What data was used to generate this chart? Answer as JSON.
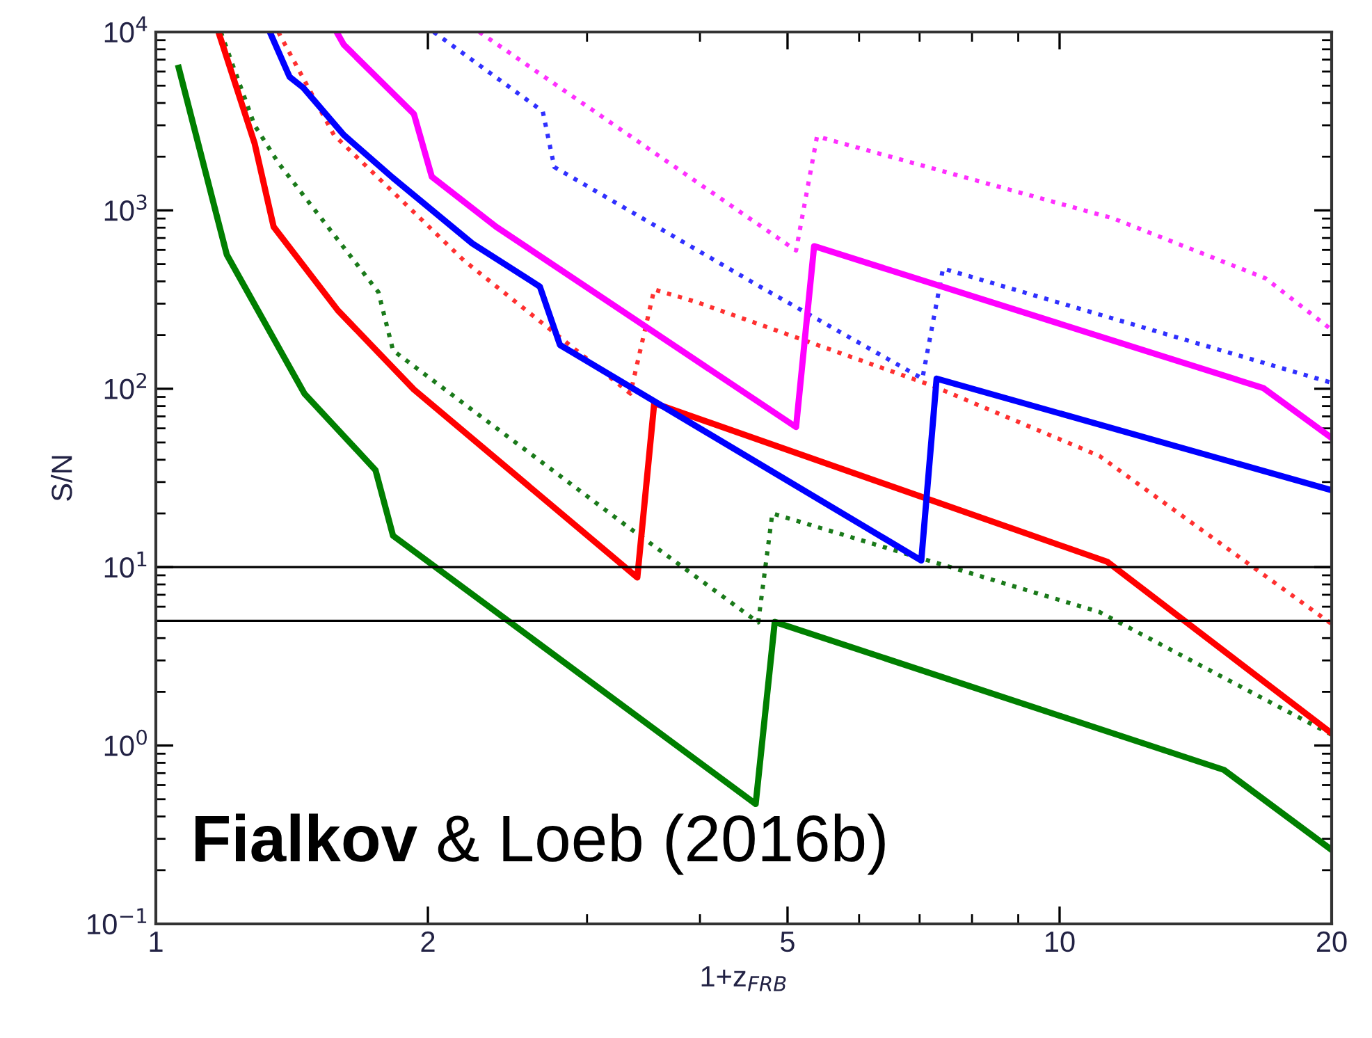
{
  "chart_data": {
    "type": "line",
    "xlabel": "1+z$_{FRB}$",
    "ylabel": "S/N",
    "log": "xy",
    "grid": false,
    "marker": "none",
    "xlim": [
      1,
      20
    ],
    "xticks": [
      1,
      2,
      5,
      10,
      20
    ],
    "ylim": [
      0.1,
      10000
    ],
    "yticks": [
      {
        "value": 0.1,
        "label": "10$^{−1}$"
      },
      {
        "value": 1,
        "label": "10$^{0}$"
      },
      {
        "value": 10,
        "label": "10$^{1}$"
      },
      {
        "value": 100,
        "label": "10$^{2}$"
      },
      {
        "value": 1000,
        "label": "10$^{3}$"
      },
      {
        "value": 10000,
        "label": "10$^{4}$"
      }
    ],
    "ref_lines": [
      {
        "axis": "y",
        "value": 10,
        "color": "#000000"
      },
      {
        "axis": "y",
        "value": 5,
        "color": "#000000"
      }
    ],
    "series": [
      {
        "color": "#1a7a1a",
        "line_style": "dotted",
        "x": [
          1.18,
          1.286,
          1.366,
          1.763,
          1.83,
          3.32,
          4.64,
          4.81,
          11.07,
          20
        ],
        "values": [
          10000,
          3000,
          1850,
          348,
          164,
          17,
          4.9,
          20,
          5.6,
          1.15
        ]
      },
      {
        "color": "#ff3030",
        "line_style": "dotted",
        "x": [
          1.366,
          1.574,
          2.19,
          3.35,
          3.56,
          3.96,
          7.23,
          11.07,
          20
        ],
        "values": [
          10000,
          2650,
          526,
          94,
          360,
          307,
          104,
          42,
          4.8
        ]
      },
      {
        "color": "#3030ff",
        "line_style": "dotted",
        "x": [
          2.03,
          2.68,
          2.76,
          4.69,
          7.05,
          7.43,
          20
        ],
        "values": [
          10000,
          3590,
          1750,
          367,
          114,
          472,
          108
        ]
      },
      {
        "color": "#ff30ff",
        "line_style": "dotted",
        "x": [
          2.28,
          5.11,
          5.39,
          11.47,
          16.9,
          20
        ],
        "values": [
          10000,
          596,
          2600,
          901,
          416,
          214
        ]
      },
      {
        "color": "#007f00",
        "line_style": "solid",
        "x": [
          1.06,
          1.198,
          1.46,
          1.75,
          1.83,
          4.61,
          4.84,
          15.2,
          20
        ],
        "values": [
          6300,
          565,
          94,
          35,
          15,
          0.47,
          4.93,
          0.73,
          0.26
        ]
      },
      {
        "color": "#ff0000",
        "line_style": "solid",
        "x": [
          1.173,
          1.286,
          1.35,
          1.59,
          1.93,
          3.41,
          3.56,
          11.3,
          20
        ],
        "values": [
          10000,
          2380,
          809,
          275,
          99,
          8.75,
          83,
          10.7,
          1.17
        ]
      },
      {
        "color": "#0000ff",
        "line_style": "solid",
        "x": [
          1.337,
          1.406,
          1.456,
          1.614,
          1.83,
          2.24,
          2.66,
          2.8,
          7.03,
          7.31,
          20
        ],
        "values": [
          10000,
          5600,
          4870,
          2650,
          1520,
          652,
          374,
          176,
          10.9,
          114,
          27
        ]
      },
      {
        "color": "#ff00ff",
        "line_style": "solid",
        "x": [
          1.585,
          1.614,
          1.93,
          2.02,
          2.38,
          5.11,
          5.35,
          16.8,
          20
        ],
        "values": [
          10000,
          8500,
          3470,
          1545,
          809,
          61,
          630,
          101,
          53
        ]
      }
    ],
    "annotations": [
      "Fialkov & Loeb (2016b)"
    ]
  }
}
